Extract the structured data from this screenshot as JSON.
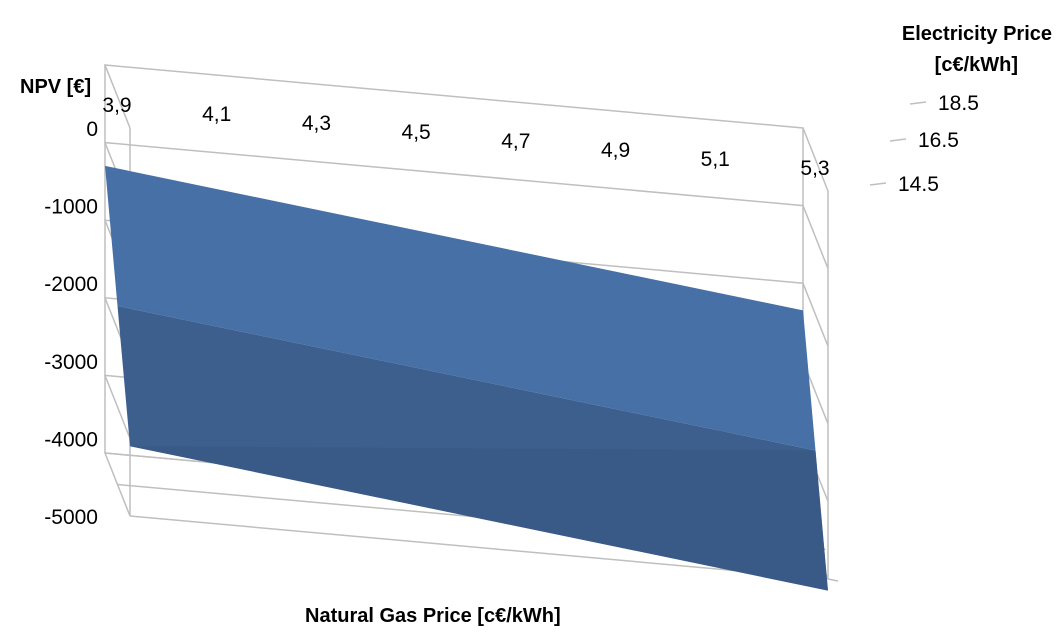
{
  "chart_data": {
    "type": "surface",
    "title": "",
    "xlabel": "Natural Gas Price [c€/kWh]",
    "ylabel": "NPV [€]",
    "zlabel_lines": [
      "Electricity Price",
      "[c€/kWh]"
    ],
    "x_categories": [
      "3,9",
      "4,1",
      "4,3",
      "4,5",
      "4,7",
      "4,9",
      "5,1",
      "5,3"
    ],
    "z_categories": [
      "14.5",
      "16.5",
      "18.5"
    ],
    "y_ticks": [
      "0",
      "-1000",
      "-2000",
      "-3000",
      "-4000",
      "-5000"
    ],
    "ylim": [
      -5000,
      0
    ],
    "surface_color": "#4a76ad",
    "surface": [
      {
        "electricity_price": "14.5",
        "values": [
          -4100,
          -4250,
          -4400,
          -4550,
          -4700,
          -4850,
          -5000,
          -5150
        ]
      },
      {
        "electricity_price": "16.5",
        "values": [
          -2700,
          -2850,
          -3000,
          -3150,
          -3300,
          -3450,
          -3600,
          -3750
        ]
      },
      {
        "electricity_price": "18.5",
        "values": [
          -1300,
          -1450,
          -1600,
          -1750,
          -1900,
          -2050,
          -2200,
          -2350
        ]
      }
    ]
  }
}
